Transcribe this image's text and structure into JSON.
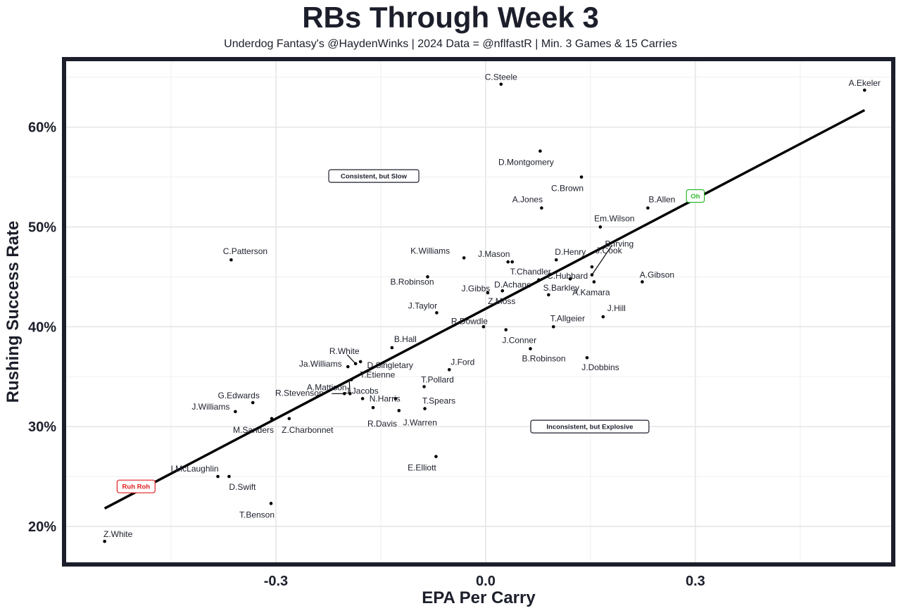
{
  "chart_data": {
    "type": "scatter",
    "title": "RBs Through Week 3",
    "subtitle": "Underdog Fantasy's @HaydenWinks | 2024 Data = @nflfastR | Min. 3 Games & 15 Carries",
    "xlabel": "EPA Per Carry",
    "ylabel": "Rushing Success Rate",
    "xlim": [
      -0.6,
      0.58
    ],
    "ylim": [
      0.164,
      0.666
    ],
    "x_ticks": [
      -0.3,
      0.0,
      0.3
    ],
    "x_tick_labels": [
      "-0.3",
      "0.0",
      "0.3"
    ],
    "y_ticks": [
      0.2,
      0.3,
      0.4,
      0.5,
      0.6
    ],
    "y_tick_labels": [
      "20%",
      "30%",
      "40%",
      "50%",
      "60%"
    ],
    "trend_line": {
      "x": [
        -0.545,
        0.542
      ],
      "y": [
        0.218,
        0.617
      ]
    },
    "points": [
      {
        "name": "C.Steele",
        "x": 0.022,
        "y": 0.643
      },
      {
        "name": "A.Ekeler",
        "x": 0.542,
        "y": 0.637
      },
      {
        "name": "D.Montgomery",
        "x": 0.078,
        "y": 0.576
      },
      {
        "name": "C.Brown",
        "x": 0.137,
        "y": 0.55
      },
      {
        "name": "A.Jones",
        "x": 0.08,
        "y": 0.519
      },
      {
        "name": "B.Allen",
        "x": 0.232,
        "y": 0.519
      },
      {
        "name": "Em.Wilson",
        "x": 0.164,
        "y": 0.5
      },
      {
        "name": "C.Patterson",
        "x": -0.364,
        "y": 0.467
      },
      {
        "name": "J.Mason",
        "x": 0.032,
        "y": 0.465
      },
      {
        "name": "D.Henry",
        "x": 0.101,
        "y": 0.467
      },
      {
        "name": "B.Irving",
        "x": 0.152,
        "y": 0.452
      },
      {
        "name": "K.Williams",
        "x": -0.031,
        "y": 0.469
      },
      {
        "name": "T.Chandler",
        "x": 0.038,
        "y": 0.465
      },
      {
        "name": "J.Cook",
        "x": 0.152,
        "y": 0.46
      },
      {
        "name": "C.Hubbard",
        "x": 0.121,
        "y": 0.448
      },
      {
        "name": "A.Gibson",
        "x": 0.224,
        "y": 0.445
      },
      {
        "name": "B.Robinson",
        "x": -0.083,
        "y": 0.45
      },
      {
        "name": "D.Achane",
        "x": 0.076,
        "y": 0.447
      },
      {
        "name": "S.Barkley",
        "x": 0.09,
        "y": 0.432
      },
      {
        "name": "A.Kamara",
        "x": 0.155,
        "y": 0.445
      },
      {
        "name": "J.Gibbs",
        "x": 0.003,
        "y": 0.434
      },
      {
        "name": "Z.Moss",
        "x": 0.024,
        "y": 0.436
      },
      {
        "name": "J.Taylor",
        "x": -0.07,
        "y": 0.414
      },
      {
        "name": "J.Hill",
        "x": 0.168,
        "y": 0.41
      },
      {
        "name": "R.Dowdle",
        "x": -0.003,
        "y": 0.4
      },
      {
        "name": "T.Allgeier",
        "x": 0.097,
        "y": 0.4
      },
      {
        "name": "J.Conner",
        "x": 0.029,
        "y": 0.397
      },
      {
        "name": "B.Hall",
        "x": -0.134,
        "y": 0.379
      },
      {
        "name": "B.Robinson",
        "x": 0.064,
        "y": 0.378
      },
      {
        "name": "R.White",
        "x": -0.186,
        "y": 0.363
      },
      {
        "name": "D.Singletary",
        "x": -0.179,
        "y": 0.365
      },
      {
        "name": "J.Dobbins",
        "x": 0.145,
        "y": 0.369
      },
      {
        "name": "Ja.Williams",
        "x": -0.197,
        "y": 0.36
      },
      {
        "name": "J.Ford",
        "x": -0.052,
        "y": 0.357
      },
      {
        "name": "T.Etienne",
        "x": -0.192,
        "y": 0.347
      },
      {
        "name": "A.Mattison",
        "x": -0.194,
        "y": 0.333
      },
      {
        "name": "T.Pollard",
        "x": -0.088,
        "y": 0.34
      },
      {
        "name": "R.Stevenson",
        "x": -0.202,
        "y": 0.333
      },
      {
        "name": "N.Harris",
        "x": -0.129,
        "y": 0.328
      },
      {
        "name": "J.Jacobs",
        "x": -0.176,
        "y": 0.328
      },
      {
        "name": "G.Edwards",
        "x": -0.333,
        "y": 0.324
      },
      {
        "name": "T.Spears",
        "x": -0.087,
        "y": 0.318
      },
      {
        "name": "J.Williams",
        "x": -0.358,
        "y": 0.315
      },
      {
        "name": "R.Davis",
        "x": -0.161,
        "y": 0.319
      },
      {
        "name": "J.Warren",
        "x": -0.124,
        "y": 0.316
      },
      {
        "name": "M.Sanders",
        "x": -0.306,
        "y": 0.308
      },
      {
        "name": "Z.Charbonnet",
        "x": -0.281,
        "y": 0.308
      },
      {
        "name": "E.Elliott",
        "x": -0.071,
        "y": 0.27
      },
      {
        "name": "I.McLaughlin",
        "x": -0.383,
        "y": 0.25
      },
      {
        "name": "D.Swift",
        "x": -0.367,
        "y": 0.25
      },
      {
        "name": "T.Benson",
        "x": -0.307,
        "y": 0.223
      },
      {
        "name": "Z.White",
        "x": -0.545,
        "y": 0.185
      }
    ],
    "annotations": [
      {
        "text": "Consistent, but Slow",
        "x": -0.16,
        "y": 0.551,
        "color": "#1c1f2b"
      },
      {
        "text": "Inconsistent, but Explosive",
        "x": 0.149,
        "y": 0.3,
        "color": "#1c1f2b"
      },
      {
        "text": "Oh",
        "x": 0.3,
        "y": 0.531,
        "color": "#2eb82e"
      },
      {
        "text": "Ruh Roh",
        "x": -0.5,
        "y": 0.24,
        "color": "#e02020"
      }
    ]
  }
}
